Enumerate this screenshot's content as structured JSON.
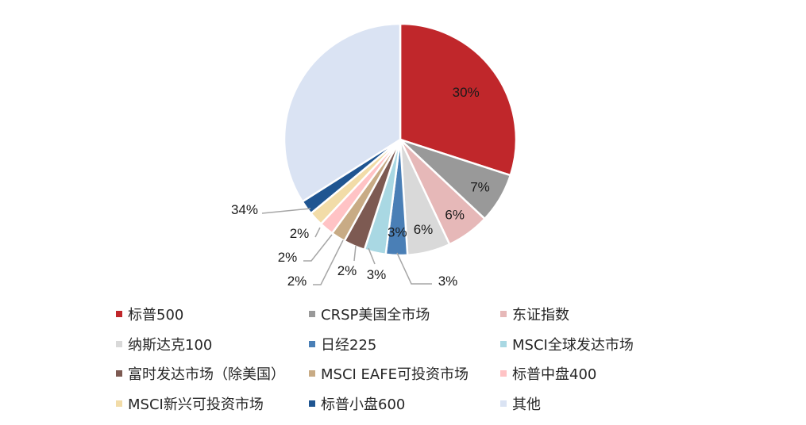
{
  "chart_data": {
    "type": "pie",
    "slices": [
      {
        "label": "标普500",
        "value": 30,
        "display": "30%",
        "color": "#c0272b"
      },
      {
        "label": "CRSP美国全市场",
        "value": 7,
        "display": "7%",
        "color": "#999999"
      },
      {
        "label": "东证指数",
        "value": 6,
        "display": "6%",
        "color": "#e6b8b8"
      },
      {
        "label": "纳斯达克100",
        "value": 6,
        "display": "6%",
        "color": "#d9d9d9"
      },
      {
        "label": "日经225",
        "value": 3,
        "display": "3%",
        "color": "#4a7fb6"
      },
      {
        "label": "MSCI全球发达市场",
        "value": 3,
        "display": "3%",
        "color": "#a9d8e3"
      },
      {
        "label": "富时发达市场（除美国）",
        "value": 3,
        "display": "3%",
        "color": "#7d5a52"
      },
      {
        "label": "MSCI EAFE可投资市场",
        "value": 2,
        "display": "2%",
        "color": "#c8ab85"
      },
      {
        "label": "标普中盘400",
        "value": 2,
        "display": "2%",
        "color": "#ffc3c5"
      },
      {
        "label": "MSCI新兴可投资市场",
        "value": 2,
        "display": "2%",
        "color": "#f2dca8"
      },
      {
        "label": "标普小盘600",
        "value": 2,
        "display": "2%",
        "color": "#1f5591"
      },
      {
        "label": "其他",
        "value": 34,
        "display": "34%",
        "color": "#dae3f3"
      }
    ],
    "legend_position": "bottom"
  }
}
